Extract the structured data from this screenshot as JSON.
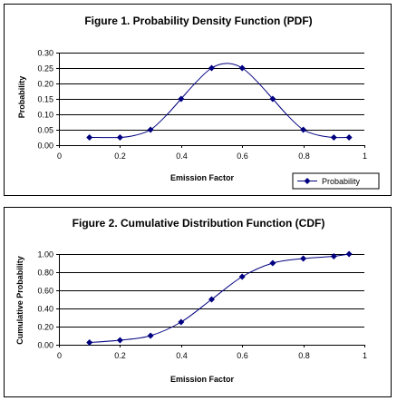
{
  "chart_data": [
    {
      "type": "line",
      "title": "Figure 1. Probability Density Function (PDF)",
      "xlabel": "Emission Factor",
      "ylabel": "Probability",
      "xlim": [
        0,
        1
      ],
      "ylim": [
        0,
        0.3
      ],
      "x_ticks": [
        "0",
        "0.2",
        "0.4",
        "0.6",
        "0.8",
        "1"
      ],
      "y_ticks": [
        "0.00",
        "0.05",
        "0.10",
        "0.15",
        "0.20",
        "0.25",
        "0.30"
      ],
      "grid": "horizontal",
      "legend_position": "bottom-right",
      "series": [
        {
          "name": "Probability",
          "marker": "diamond",
          "color": "#000080",
          "points": [
            [
              0.1,
              0.025
            ],
            [
              0.2,
              0.025
            ],
            [
              0.3,
              0.05
            ],
            [
              0.4,
              0.15
            ],
            [
              0.5,
              0.25
            ],
            [
              0.6,
              0.25
            ],
            [
              0.7,
              0.15
            ],
            [
              0.8,
              0.05
            ],
            [
              0.9,
              0.025
            ],
            [
              0.95,
              0.025
            ]
          ]
        }
      ],
      "curve": [
        [
          0.1,
          0.025
        ],
        [
          0.2,
          0.025
        ],
        [
          0.25,
          0.032
        ],
        [
          0.3,
          0.05
        ],
        [
          0.35,
          0.095
        ],
        [
          0.4,
          0.15
        ],
        [
          0.45,
          0.205
        ],
        [
          0.5,
          0.25
        ],
        [
          0.55,
          0.265
        ],
        [
          0.6,
          0.25
        ],
        [
          0.65,
          0.205
        ],
        [
          0.7,
          0.15
        ],
        [
          0.75,
          0.095
        ],
        [
          0.8,
          0.05
        ],
        [
          0.85,
          0.032
        ],
        [
          0.9,
          0.025
        ],
        [
          0.95,
          0.025
        ]
      ]
    },
    {
      "type": "line",
      "title": "Figure 2. Cumulative Distribution Function (CDF)",
      "xlabel": "Emission Factor",
      "ylabel": "Cumulative Probability",
      "xlim": [
        0,
        1
      ],
      "ylim": [
        0,
        1
      ],
      "x_ticks": [
        "0",
        "0.2",
        "0.4",
        "0.6",
        "0.8",
        "1"
      ],
      "y_ticks": [
        "0.00",
        "0.20",
        "0.40",
        "0.60",
        "0.80",
        "1.00"
      ],
      "grid": "horizontal",
      "series": [
        {
          "name": "",
          "marker": "diamond",
          "color": "#000080",
          "points": [
            [
              0.1,
              0.025
            ],
            [
              0.2,
              0.05
            ],
            [
              0.3,
              0.1
            ],
            [
              0.4,
              0.25
            ],
            [
              0.5,
              0.5
            ],
            [
              0.6,
              0.75
            ],
            [
              0.7,
              0.9
            ],
            [
              0.8,
              0.95
            ],
            [
              0.9,
              0.975
            ],
            [
              0.95,
              1.0
            ]
          ]
        }
      ]
    }
  ]
}
